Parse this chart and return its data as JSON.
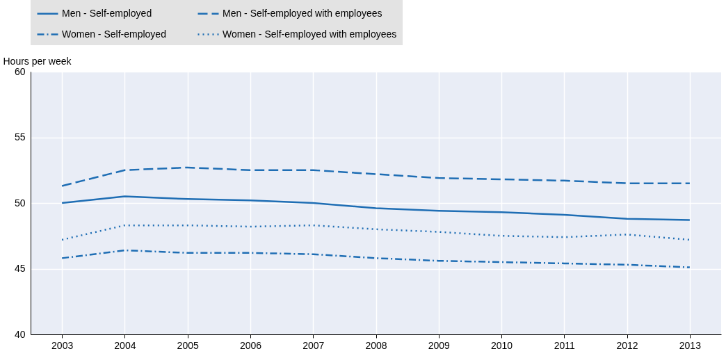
{
  "chart_data": {
    "type": "line",
    "ylabel": "Hours per week",
    "categories": [
      "2003",
      "2004",
      "2005",
      "2006",
      "2007",
      "2008",
      "2009",
      "2010",
      "2011",
      "2012",
      "2013"
    ],
    "series": [
      {
        "name": "Men - Self-employed",
        "color": "#1f6eb4",
        "line_style": "solid",
        "values": [
          50.0,
          50.5,
          50.3,
          50.2,
          50.0,
          49.6,
          49.4,
          49.3,
          49.1,
          48.8,
          48.7
        ]
      },
      {
        "name": "Men - Self-employed with employees",
        "color": "#1f6eb4",
        "line_style": "dashed",
        "values": [
          51.3,
          52.5,
          52.7,
          52.5,
          52.5,
          52.2,
          51.9,
          51.8,
          51.7,
          51.5,
          51.5
        ]
      },
      {
        "name": "Women - Self-employed",
        "color": "#1f6eb4",
        "line_style": "dashdot",
        "values": [
          45.8,
          46.4,
          46.2,
          46.2,
          46.1,
          45.8,
          45.6,
          45.5,
          45.4,
          45.3,
          45.1
        ]
      },
      {
        "name": "Women - Self-employed with employees",
        "color": "#1f6eb4",
        "line_style": "dotted",
        "values": [
          47.2,
          48.3,
          48.3,
          48.2,
          48.3,
          48.0,
          47.8,
          47.5,
          47.4,
          47.6,
          47.2
        ]
      }
    ],
    "ylim": [
      40,
      60
    ],
    "yticks": [
      40,
      45,
      50,
      55,
      60
    ],
    "grid": true,
    "legend": "top"
  }
}
